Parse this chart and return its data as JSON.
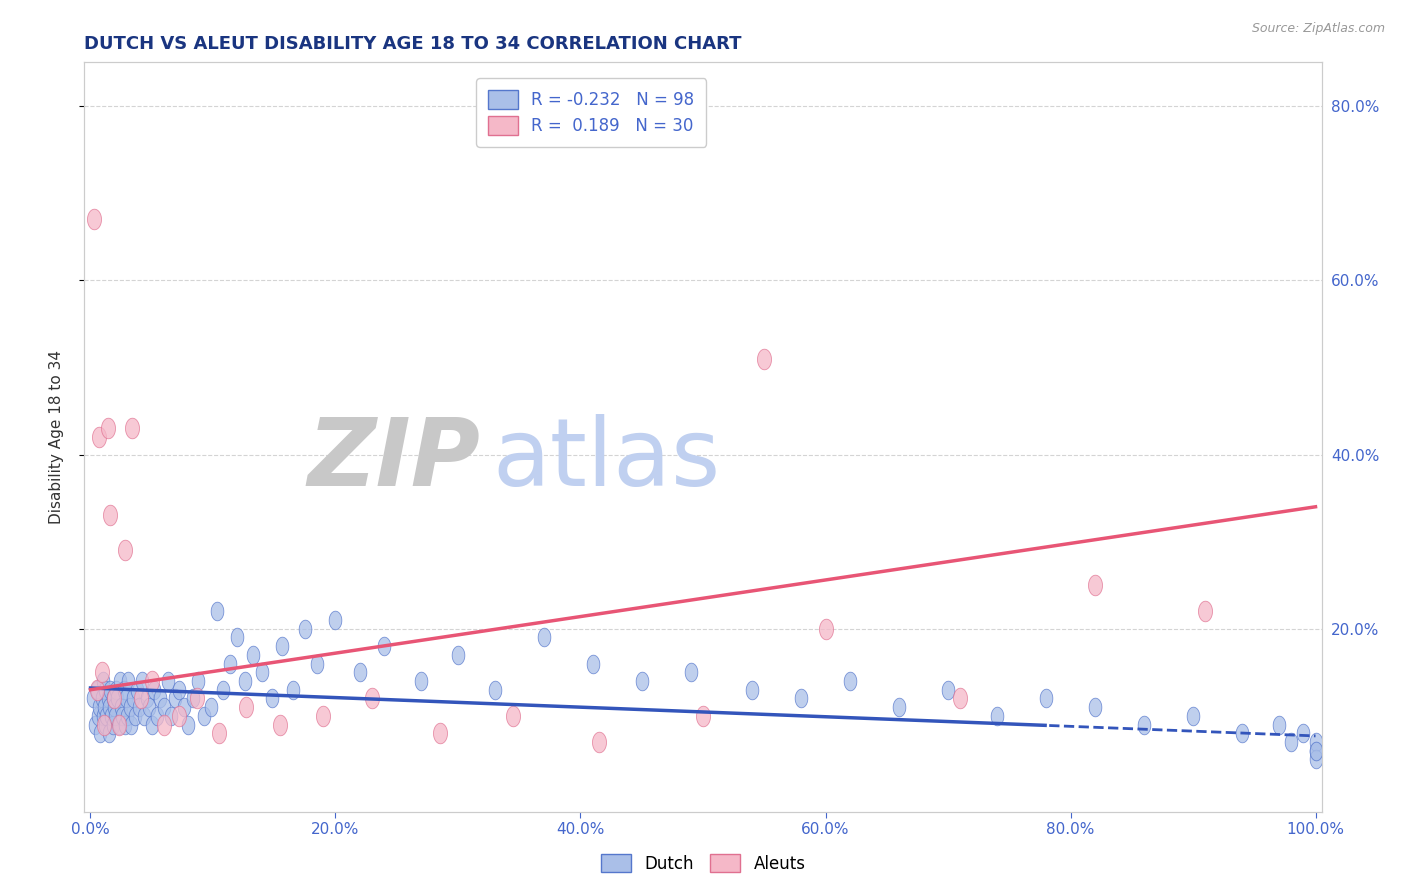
{
  "title": "DUTCH VS ALEUT DISABILITY AGE 18 TO 34 CORRELATION CHART",
  "source_text": "Source: ZipAtlas.com",
  "ylabel": "Disability Age 18 to 34",
  "xlim": [
    -0.005,
    1.005
  ],
  "ylim": [
    -0.01,
    0.85
  ],
  "xtick_labels": [
    "0.0%",
    "20.0%",
    "40.0%",
    "60.0%",
    "80.0%",
    "100.0%"
  ],
  "xtick_vals": [
    0.0,
    0.2,
    0.4,
    0.6,
    0.8,
    1.0
  ],
  "ytick_labels": [
    "20.0%",
    "40.0%",
    "60.0%",
    "80.0%"
  ],
  "ytick_vals": [
    0.2,
    0.4,
    0.6,
    0.8
  ],
  "title_color": "#1a3580",
  "axis_label_color": "#333333",
  "tick_color": "#4466cc",
  "legend_R_dutch": "-0.232",
  "legend_N_dutch": "98",
  "legend_R_aleuts": "0.189",
  "legend_N_aleuts": "30",
  "dutch_face_color": "#aabfe8",
  "dutch_edge_color": "#5577cc",
  "aleuts_face_color": "#f5b8c8",
  "aleuts_edge_color": "#e07090",
  "dutch_line_color": "#3355bb",
  "aleuts_line_color": "#e85575",
  "watermark_zip_color": "#c8c8c8",
  "watermark_atlas_color": "#c0d0f0",
  "dutch_x": [
    0.002,
    0.004,
    0.005,
    0.006,
    0.007,
    0.008,
    0.009,
    0.01,
    0.01,
    0.011,
    0.012,
    0.012,
    0.013,
    0.014,
    0.015,
    0.015,
    0.016,
    0.017,
    0.018,
    0.018,
    0.019,
    0.02,
    0.021,
    0.022,
    0.023,
    0.024,
    0.025,
    0.026,
    0.027,
    0.028,
    0.029,
    0.03,
    0.031,
    0.032,
    0.033,
    0.035,
    0.036,
    0.038,
    0.04,
    0.042,
    0.044,
    0.046,
    0.048,
    0.05,
    0.052,
    0.054,
    0.057,
    0.06,
    0.063,
    0.066,
    0.069,
    0.072,
    0.076,
    0.08,
    0.084,
    0.088,
    0.093,
    0.098,
    0.103,
    0.108,
    0.114,
    0.12,
    0.126,
    0.133,
    0.14,
    0.148,
    0.156,
    0.165,
    0.175,
    0.185,
    0.2,
    0.22,
    0.24,
    0.27,
    0.3,
    0.33,
    0.37,
    0.41,
    0.45,
    0.49,
    0.54,
    0.58,
    0.62,
    0.66,
    0.7,
    0.74,
    0.78,
    0.82,
    0.86,
    0.9,
    0.94,
    0.97,
    0.98,
    0.99,
    1.0,
    1.0,
    1.0,
    1.0
  ],
  "dutch_y": [
    0.12,
    0.09,
    0.13,
    0.1,
    0.11,
    0.08,
    0.12,
    0.1,
    0.14,
    0.11,
    0.09,
    0.13,
    0.1,
    0.12,
    0.11,
    0.08,
    0.13,
    0.1,
    0.12,
    0.09,
    0.11,
    0.1,
    0.13,
    0.12,
    0.09,
    0.14,
    0.11,
    0.1,
    0.13,
    0.09,
    0.12,
    0.1,
    0.14,
    0.11,
    0.09,
    0.12,
    0.1,
    0.13,
    0.11,
    0.14,
    0.1,
    0.12,
    0.11,
    0.09,
    0.13,
    0.1,
    0.12,
    0.11,
    0.14,
    0.1,
    0.12,
    0.13,
    0.11,
    0.09,
    0.12,
    0.14,
    0.1,
    0.11,
    0.22,
    0.13,
    0.16,
    0.19,
    0.14,
    0.17,
    0.15,
    0.12,
    0.18,
    0.13,
    0.2,
    0.16,
    0.21,
    0.15,
    0.18,
    0.14,
    0.17,
    0.13,
    0.19,
    0.16,
    0.14,
    0.15,
    0.13,
    0.12,
    0.14,
    0.11,
    0.13,
    0.1,
    0.12,
    0.11,
    0.09,
    0.1,
    0.08,
    0.09,
    0.07,
    0.08,
    0.06,
    0.07,
    0.05,
    0.06
  ],
  "aleuts_x": [
    0.003,
    0.005,
    0.007,
    0.009,
    0.011,
    0.014,
    0.016,
    0.019,
    0.023,
    0.028,
    0.034,
    0.041,
    0.05,
    0.06,
    0.072,
    0.087,
    0.105,
    0.127,
    0.155,
    0.19,
    0.23,
    0.285,
    0.345,
    0.415,
    0.5,
    0.55,
    0.6,
    0.71,
    0.82,
    0.91
  ],
  "aleuts_y": [
    0.67,
    0.13,
    0.42,
    0.15,
    0.09,
    0.43,
    0.33,
    0.12,
    0.09,
    0.29,
    0.43,
    0.12,
    0.14,
    0.09,
    0.1,
    0.12,
    0.08,
    0.11,
    0.09,
    0.1,
    0.12,
    0.08,
    0.1,
    0.07,
    0.1,
    0.51,
    0.2,
    0.12,
    0.25,
    0.22
  ],
  "dutch_line_intercept": 0.132,
  "dutch_line_slope": -0.055,
  "aleuts_line_intercept": 0.13,
  "aleuts_line_slope": 0.21
}
